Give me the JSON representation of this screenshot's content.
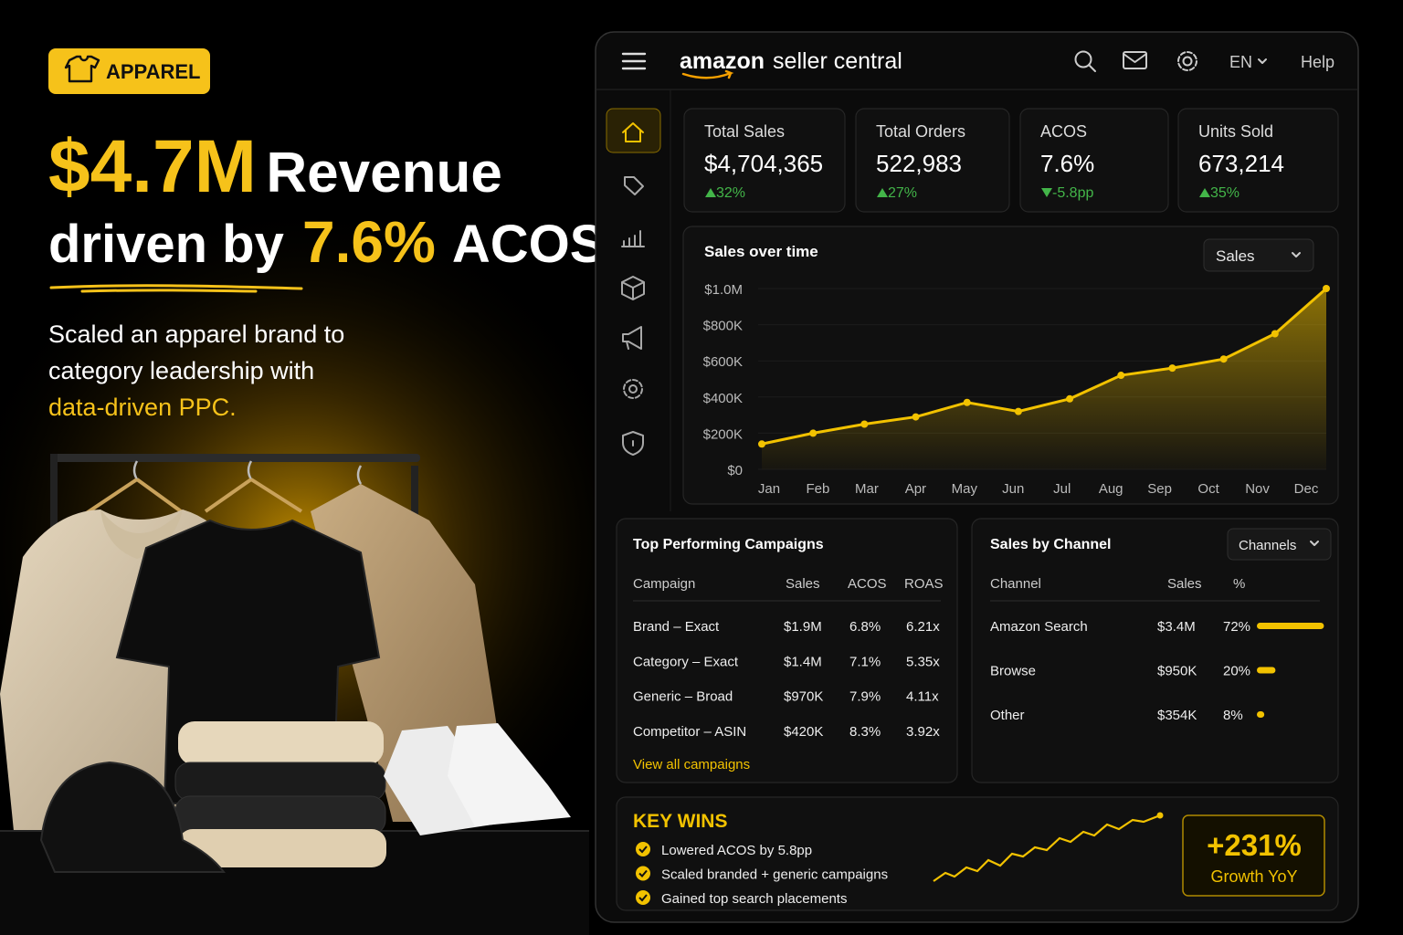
{
  "badge": "APPAREL",
  "headline": {
    "line1_highlight": "$4.7M",
    "line1_rest": "Revenue",
    "line2_start": "driven by",
    "line2_highlight": "7.6%",
    "line2_rest": "ACOS"
  },
  "description": [
    "Scaled an apparel brand to",
    "category leadership with",
    "data-driven PPC."
  ],
  "header": {
    "logo_brand": "amazon",
    "logo_product": "seller central",
    "language": "EN",
    "help": "Help"
  },
  "kpis": [
    {
      "label": "Total Sales",
      "value": "$4,704,365",
      "change": "32%",
      "trend": "up"
    },
    {
      "label": "Total Orders",
      "value": "522,983",
      "change": "27%",
      "trend": "up"
    },
    {
      "label": "ACOS",
      "value": "7.6%",
      "change": "-5.8pp",
      "trend": "down"
    },
    {
      "label": "Units Sold",
      "value": "673,214",
      "change": "35%",
      "trend": "up"
    }
  ],
  "chart_data": {
    "type": "line",
    "title": "Sales over time",
    "dropdown": "Sales",
    "categories": [
      "Jan",
      "Feb",
      "Mar",
      "Apr",
      "May",
      "Jun",
      "Jul",
      "Aug",
      "Sep",
      "Oct",
      "Nov",
      "Dec"
    ],
    "values": [
      140000,
      200000,
      250000,
      290000,
      370000,
      320000,
      390000,
      520000,
      560000,
      610000,
      750000,
      1000000
    ],
    "color": "#f2c200",
    "ylim": [
      0,
      1000000
    ],
    "yticks": [
      {
        "value": 0,
        "label": "$0"
      },
      {
        "value": 200000,
        "label": "$200K"
      },
      {
        "value": 400000,
        "label": "$400K"
      },
      {
        "value": 600000,
        "label": "$600K"
      },
      {
        "value": 800000,
        "label": "$800K"
      },
      {
        "value": 1000000,
        "label": "$1.0M"
      }
    ],
    "grid": true
  },
  "campaigns": {
    "title": "Top Performing Campaigns",
    "columns": [
      "Campaign",
      "Sales",
      "ACOS",
      "ROAS"
    ],
    "rows": [
      [
        "Brand – Exact",
        "$1.9M",
        "6.8%",
        "6.21x"
      ],
      [
        "Category – Exact",
        "$1.4M",
        "7.1%",
        "5.35x"
      ],
      [
        "Generic – Broad",
        "$970K",
        "7.9%",
        "4.11x"
      ],
      [
        "Competitor – ASIN",
        "$420K",
        "8.3%",
        "3.92x"
      ]
    ],
    "link": "View all campaigns"
  },
  "channels": {
    "title": "Sales by Channel",
    "dropdown": "Channels",
    "columns": [
      "Channel",
      "Sales",
      "%"
    ],
    "rows": [
      {
        "channel": "Amazon Search",
        "sales": "$3.4M",
        "share": 72,
        "share_label": "72%"
      },
      {
        "channel": "Browse",
        "sales": "$950K",
        "share": 20,
        "share_label": "20%"
      },
      {
        "channel": "Other",
        "sales": "$354K",
        "share": 8,
        "share_label": "8%"
      }
    ]
  },
  "key_wins": {
    "title": "KEY WINS",
    "items": [
      "Lowered ACOS by 5.8pp",
      "Scaled branded + generic campaigns",
      "Gained top search placements"
    ],
    "growth_value": "+231%",
    "growth_label": "Growth YoY"
  }
}
